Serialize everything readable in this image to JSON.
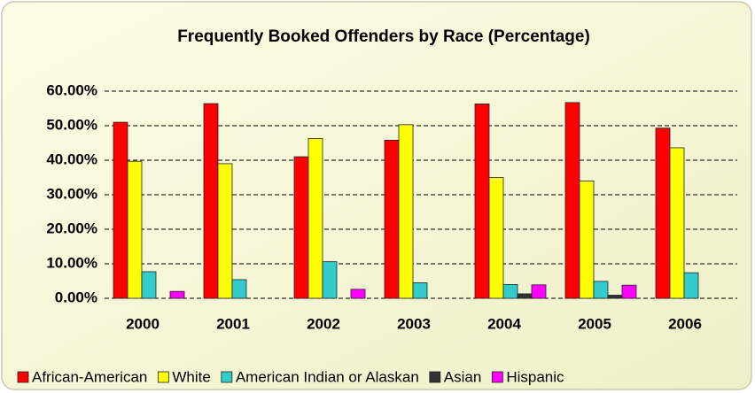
{
  "chart_data": {
    "type": "bar",
    "title": "Frequently Booked Offenders by Race (Percentage)",
    "categories": [
      "2000",
      "2001",
      "2002",
      "2003",
      "2004",
      "2005",
      "2006"
    ],
    "series": [
      {
        "name": "African-American",
        "color": "#ff0000",
        "values": [
          51,
          56.4,
          41,
          45.8,
          56.3,
          56.7,
          49.3
        ]
      },
      {
        "name": "White",
        "color": "#ffff00",
        "values": [
          39.7,
          39,
          46.3,
          50.3,
          35,
          34,
          43.6
        ]
      },
      {
        "name": "American Indian or Alaskan",
        "color": "#33cccc",
        "values": [
          7.7,
          5.4,
          10.6,
          4.5,
          4,
          4.9,
          7.4
        ]
      },
      {
        "name": "Asian",
        "color": "#333333",
        "values": [
          0,
          0,
          0,
          0,
          1.3,
          0.9,
          0
        ]
      },
      {
        "name": "Hispanic",
        "color": "#ff00ff",
        "values": [
          2,
          0,
          2.6,
          0,
          3.9,
          3.8,
          0
        ]
      }
    ],
    "ylim": [
      0,
      60
    ],
    "yticks": [
      {
        "value": 0,
        "label": "0.00%"
      },
      {
        "value": 10,
        "label": "10.00%"
      },
      {
        "value": 20,
        "label": "20.00%"
      },
      {
        "value": 30,
        "label": "30.00%"
      },
      {
        "value": 40,
        "label": "40.00%"
      },
      {
        "value": 50,
        "label": "50.00%"
      },
      {
        "value": 60,
        "label": "60.00%"
      }
    ],
    "grid": true,
    "legend": "bottom"
  }
}
